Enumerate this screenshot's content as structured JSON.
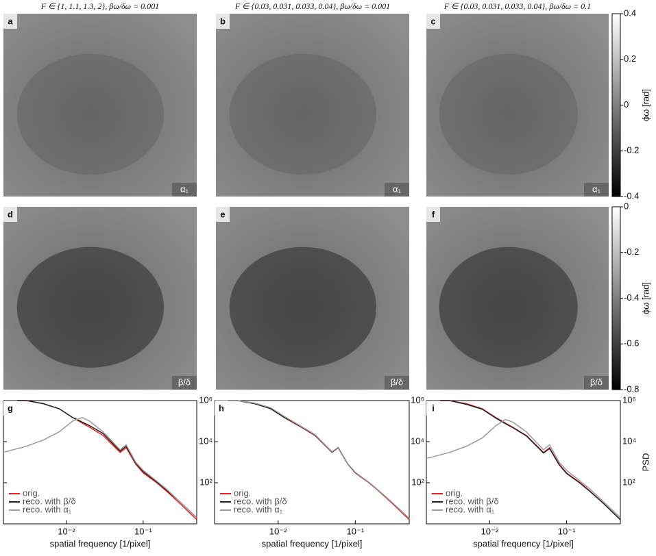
{
  "column_titles": [
    "F ∈ {1, 1.1, 1.3, 2}, βω/δω = 0.001",
    "F ∈ {0.03, 0.031, 0.033, 0.04}, βω/δω = 0.001",
    "F ∈ {0.03, 0.031, 0.033, 0.04}, βω/δω = 0.1"
  ],
  "image_panels": [
    {
      "label": "a",
      "tag": "α₁"
    },
    {
      "label": "b",
      "tag": "α₁"
    },
    {
      "label": "c",
      "tag": "α₁"
    },
    {
      "label": "d",
      "tag": "β/δ"
    },
    {
      "label": "e",
      "tag": "β/δ"
    },
    {
      "label": "f",
      "tag": "β/δ"
    }
  ],
  "colorbars": [
    {
      "label": "ϕω [rad]",
      "lim": [
        -0.4,
        0.4
      ],
      "ticks": [
        0.4,
        0.2,
        0,
        -0.2,
        -0.4
      ]
    },
    {
      "label": "ϕω [rad]",
      "lim": [
        -0.8,
        0
      ],
      "ticks": [
        0,
        -0.2,
        -0.4,
        -0.6,
        -0.8
      ]
    }
  ],
  "chart_data": [
    {
      "type": "line",
      "label": "g",
      "xlabel": "spatial frequency [1/pixel]",
      "log_x": true,
      "log_y": true,
      "legend": "lower left",
      "xlim": [
        0.0015,
        0.5
      ],
      "ylim": [
        1,
        1000000
      ],
      "xticks": [
        {
          "value": 0.01,
          "label": "10⁻²"
        },
        {
          "value": 0.1,
          "label": "10⁻¹"
        }
      ],
      "yticks": [
        {
          "value": 100,
          "label": "10²"
        },
        {
          "value": 10000,
          "label": "10⁴"
        },
        {
          "value": 1000000,
          "label": "10⁶"
        }
      ],
      "x": [
        0.0015,
        0.003,
        0.005,
        0.008,
        0.012,
        0.016,
        0.02,
        0.03,
        0.05,
        0.06,
        0.08,
        0.1,
        0.15,
        0.2,
        0.3,
        0.5
      ],
      "series": [
        {
          "name": "orig.",
          "color": "#e8231d",
          "values": [
            1000000,
            1000000,
            700000,
            400000,
            150000,
            80000,
            50000,
            20000,
            3000,
            5000,
            800,
            300,
            100,
            40,
            10,
            1.6
          ]
        },
        {
          "name": "reco. with β/δ",
          "color": "#222222",
          "values": [
            1000000,
            1000000,
            700000,
            400000,
            150000,
            90000,
            60000,
            25000,
            3500,
            6000,
            900,
            350,
            110,
            45,
            12,
            2
          ]
        },
        {
          "name": "reco. with α₁",
          "color": "#999999",
          "values": [
            3000,
            6000,
            12000,
            30000,
            100000,
            150000,
            100000,
            30000,
            4000,
            7000,
            1000,
            400,
            120,
            50,
            12,
            2
          ]
        }
      ]
    },
    {
      "type": "line",
      "label": "h",
      "xlabel": "spatial frequency [1/pixel]",
      "log_x": true,
      "log_y": true,
      "legend": "lower left",
      "xlim": [
        0.0015,
        0.5
      ],
      "ylim": [
        1,
        1000000
      ],
      "xticks": [
        {
          "value": 0.01,
          "label": "10⁻²"
        },
        {
          "value": 0.1,
          "label": "10⁻¹"
        }
      ],
      "yticks": [
        {
          "value": 100,
          "label": "10²"
        },
        {
          "value": 10000,
          "label": "10⁴"
        },
        {
          "value": 1000000,
          "label": "10⁶"
        }
      ],
      "x": [
        0.0015,
        0.003,
        0.005,
        0.008,
        0.012,
        0.016,
        0.02,
        0.03,
        0.05,
        0.06,
        0.08,
        0.1,
        0.15,
        0.2,
        0.3,
        0.5
      ],
      "series": [
        {
          "name": "orig.",
          "color": "#e8231d",
          "values": [
            1000000,
            1000000,
            700000,
            400000,
            150000,
            80000,
            50000,
            20000,
            3000,
            5000,
            800,
            300,
            100,
            40,
            10,
            1.6
          ]
        },
        {
          "name": "reco. with β/δ",
          "color": "#222222",
          "values": [
            1000000,
            1000000,
            700000,
            400000,
            150000,
            85000,
            52000,
            21000,
            3100,
            5200,
            820,
            310,
            105,
            42,
            11,
            1.8
          ]
        },
        {
          "name": "reco. with α₁",
          "color": "#999999",
          "values": [
            1000000,
            1000000,
            750000,
            450000,
            170000,
            90000,
            55000,
            22000,
            3200,
            5300,
            830,
            320,
            105,
            42,
            11,
            1.8
          ]
        }
      ]
    },
    {
      "type": "line",
      "label": "i",
      "xlabel": "spatial frequency [1/pixel]",
      "ylabel": "PSD",
      "log_x": true,
      "log_y": true,
      "legend": "lower left",
      "xlim": [
        0.0015,
        0.5
      ],
      "ylim": [
        1,
        1000000
      ],
      "xticks": [
        {
          "value": 0.01,
          "label": "10⁻²"
        },
        {
          "value": 0.1,
          "label": "10⁻¹"
        }
      ],
      "yticks": [
        {
          "value": 100,
          "label": "10²"
        },
        {
          "value": 10000,
          "label": "10⁴"
        },
        {
          "value": 1000000,
          "label": "10⁶"
        }
      ],
      "x": [
        0.0015,
        0.003,
        0.005,
        0.008,
        0.012,
        0.016,
        0.02,
        0.03,
        0.05,
        0.06,
        0.08,
        0.1,
        0.15,
        0.2,
        0.3,
        0.5
      ],
      "series": [
        {
          "name": "orig.",
          "color": "#e8231d",
          "values": [
            1000000,
            1000000,
            700000,
            400000,
            150000,
            80000,
            50000,
            20000,
            3000,
            5000,
            800,
            300,
            100,
            40,
            10,
            1.6
          ]
        },
        {
          "name": "reco. with β/δ",
          "color": "#222222",
          "values": [
            1000000,
            1000000,
            650000,
            380000,
            140000,
            75000,
            48000,
            19000,
            2800,
            4600,
            750,
            280,
            95,
            38,
            10,
            1.6
          ]
        },
        {
          "name": "reco. with α₁",
          "color": "#999999",
          "values": [
            1500,
            3000,
            6000,
            15000,
            60000,
            120000,
            90000,
            30000,
            4000,
            7000,
            1000,
            400,
            120,
            50,
            12,
            2
          ]
        }
      ]
    }
  ]
}
